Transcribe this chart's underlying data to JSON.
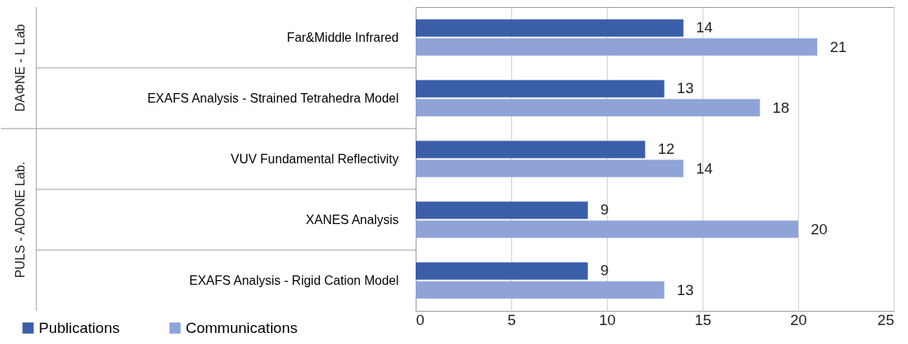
{
  "chart_data": {
    "type": "bar",
    "orientation": "horizontal",
    "categories": [
      "Far&Middle Infrared",
      "EXAFS Analysis - Strained Tetrahedra Model",
      "VUV Fundamental Reflectivity",
      "XANES Analysis",
      "EXAFS Analysis - Rigid Cation Model"
    ],
    "series": [
      {
        "name": "Publications",
        "color": "#3a5ea8",
        "values": [
          14,
          13,
          12,
          9,
          9
        ]
      },
      {
        "name": "Communications",
        "color": "#8fa3d7",
        "values": [
          21,
          18,
          14,
          20,
          13
        ]
      }
    ],
    "annotations": [
      "DAΦNE - L Lab",
      "PULS - ADONE Lab."
    ],
    "xlim": [
      0,
      25
    ],
    "xticks": [
      0,
      5,
      10,
      15,
      20,
      25
    ],
    "grid": "x",
    "legend": "bottom left",
    "data_labels": true
  }
}
